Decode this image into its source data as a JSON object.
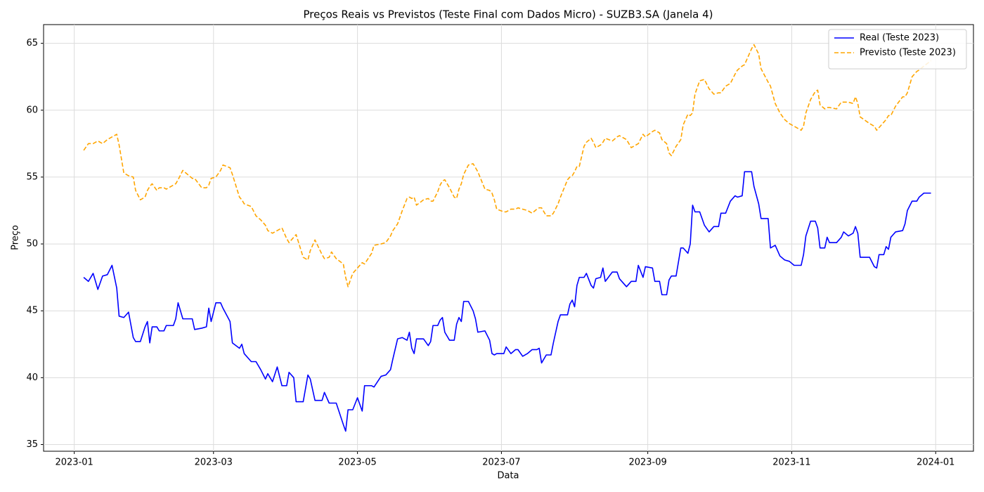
{
  "chart_data": {
    "type": "line",
    "title": "Preços Reais vs Previstos (Teste Final com Dados Micro) - SUZB3.SA (Janela 4)",
    "x_label": "Data",
    "y_label": "Preço",
    "x": [
      "2023-01-05",
      "2023-01-07",
      "2023-01-09",
      "2023-01-11",
      "2023-01-13",
      "2023-01-15",
      "2023-01-17",
      "2023-01-19",
      "2023-01-20",
      "2023-01-22",
      "2023-01-24",
      "2023-01-26",
      "2023-01-27",
      "2023-01-29",
      "2023-01-31",
      "2023-02-01",
      "2023-02-02",
      "2023-02-03",
      "2023-02-05",
      "2023-02-06",
      "2023-02-08",
      "2023-02-09",
      "2023-02-12",
      "2023-02-13",
      "2023-02-14",
      "2023-02-16",
      "2023-02-18",
      "2023-02-20",
      "2023-02-21",
      "2023-02-24",
      "2023-02-26",
      "2023-02-27",
      "2023-02-28",
      "2023-03-02",
      "2023-03-04",
      "2023-03-05",
      "2023-03-08",
      "2023-03-09",
      "2023-03-12",
      "2023-03-13",
      "2023-03-14",
      "2023-03-17",
      "2023-03-19",
      "2023-03-21",
      "2023-03-23",
      "2023-03-24",
      "2023-03-26",
      "2023-03-28",
      "2023-03-30",
      "2023-04-01",
      "2023-04-02",
      "2023-04-04",
      "2023-04-05",
      "2023-04-08",
      "2023-04-10",
      "2023-04-11",
      "2023-04-13",
      "2023-04-16",
      "2023-04-17",
      "2023-04-19",
      "2023-04-20",
      "2023-04-22",
      "2023-04-25",
      "2023-04-26",
      "2023-04-27",
      "2023-04-29",
      "2023-05-01",
      "2023-05-03",
      "2023-05-04",
      "2023-05-07",
      "2023-05-08",
      "2023-05-11",
      "2023-05-13",
      "2023-05-15",
      "2023-05-16",
      "2023-05-18",
      "2023-05-20",
      "2023-05-22",
      "2023-05-23",
      "2023-05-24",
      "2023-05-25",
      "2023-05-26",
      "2023-05-29",
      "2023-05-31",
      "2023-06-01",
      "2023-06-02",
      "2023-06-04",
      "2023-06-05",
      "2023-06-06",
      "2023-06-07",
      "2023-06-09",
      "2023-06-11",
      "2023-06-12",
      "2023-06-13",
      "2023-06-14",
      "2023-06-15",
      "2023-06-17",
      "2023-06-19",
      "2023-06-20",
      "2023-06-21",
      "2023-06-24",
      "2023-06-26",
      "2023-06-27",
      "2023-06-28",
      "2023-06-29",
      "2023-07-02",
      "2023-07-03",
      "2023-07-05",
      "2023-07-07",
      "2023-07-08",
      "2023-07-10",
      "2023-07-12",
      "2023-07-14",
      "2023-07-16",
      "2023-07-17",
      "2023-07-18",
      "2023-07-20",
      "2023-07-22",
      "2023-07-23",
      "2023-07-25",
      "2023-07-26",
      "2023-07-29",
      "2023-07-30",
      "2023-07-31",
      "2023-08-01",
      "2023-08-02",
      "2023-08-03",
      "2023-08-05",
      "2023-08-06",
      "2023-08-08",
      "2023-08-09",
      "2023-08-10",
      "2023-08-12",
      "2023-08-13",
      "2023-08-14",
      "2023-08-17",
      "2023-08-19",
      "2023-08-20",
      "2023-08-23",
      "2023-08-25",
      "2023-08-27",
      "2023-08-28",
      "2023-08-30",
      "2023-08-31",
      "2023-09-03",
      "2023-09-04",
      "2023-09-06",
      "2023-09-07",
      "2023-09-09",
      "2023-09-10",
      "2023-09-11",
      "2023-09-13",
      "2023-09-15",
      "2023-09-16",
      "2023-09-18",
      "2023-09-19",
      "2023-09-20",
      "2023-09-21",
      "2023-09-23",
      "2023-09-25",
      "2023-09-27",
      "2023-09-29",
      "2023-10-01",
      "2023-10-02",
      "2023-10-04",
      "2023-10-06",
      "2023-10-08",
      "2023-10-09",
      "2023-10-11",
      "2023-10-12",
      "2023-10-15",
      "2023-10-16",
      "2023-10-18",
      "2023-10-19",
      "2023-10-22",
      "2023-10-23",
      "2023-10-25",
      "2023-10-27",
      "2023-10-29",
      "2023-10-31",
      "2023-11-02",
      "2023-11-05",
      "2023-11-06",
      "2023-11-07",
      "2023-11-09",
      "2023-11-11",
      "2023-11-12",
      "2023-11-13",
      "2023-11-15",
      "2023-11-16",
      "2023-11-17",
      "2023-11-20",
      "2023-11-22",
      "2023-11-23",
      "2023-11-25",
      "2023-11-27",
      "2023-11-28",
      "2023-11-29",
      "2023-11-30",
      "2023-12-04",
      "2023-12-06",
      "2023-12-07",
      "2023-12-08",
      "2023-12-10",
      "2023-12-11",
      "2023-12-12",
      "2023-12-13",
      "2023-12-15",
      "2023-12-18",
      "2023-12-19",
      "2023-12-20",
      "2023-12-22",
      "2023-12-24",
      "2023-12-25",
      "2023-12-27",
      "2023-12-30"
    ],
    "series": [
      {
        "name": "Real (Teste 2023)",
        "color": "#0000ff",
        "linestyle": "solid",
        "values": [
          47.5,
          47.2,
          47.8,
          46.6,
          47.6,
          47.7,
          48.4,
          46.7,
          44.6,
          44.5,
          44.9,
          43.0,
          42.7,
          42.7,
          43.8,
          44.2,
          42.6,
          43.8,
          43.8,
          43.5,
          43.5,
          43.9,
          43.9,
          44.4,
          45.6,
          44.4,
          44.4,
          44.4,
          43.6,
          43.7,
          43.8,
          45.2,
          44.2,
          45.6,
          45.6,
          45.2,
          44.2,
          42.6,
          42.2,
          42.5,
          41.8,
          41.2,
          41.2,
          40.6,
          39.9,
          40.3,
          39.7,
          40.8,
          39.4,
          39.4,
          40.4,
          40.0,
          38.2,
          38.2,
          40.2,
          39.9,
          38.3,
          38.3,
          38.9,
          38.1,
          38.1,
          38.1,
          36.5,
          36.0,
          37.6,
          37.6,
          38.5,
          37.5,
          39.4,
          39.4,
          39.3,
          40.1,
          40.2,
          40.6,
          41.4,
          42.9,
          43.0,
          42.8,
          43.4,
          42.2,
          41.8,
          42.9,
          42.9,
          42.4,
          42.7,
          43.9,
          43.9,
          44.3,
          44.5,
          43.4,
          42.8,
          42.8,
          44.0,
          44.5,
          44.2,
          45.7,
          45.7,
          45.0,
          44.4,
          43.4,
          43.5,
          42.8,
          41.8,
          41.7,
          41.8,
          41.8,
          42.3,
          41.8,
          42.1,
          42.1,
          41.6,
          41.8,
          42.1,
          42.1,
          42.2,
          41.1,
          41.7,
          41.7,
          42.6,
          44.2,
          44.7,
          44.7,
          45.5,
          45.8,
          45.3,
          46.9,
          47.5,
          47.5,
          47.8,
          46.9,
          46.7,
          47.4,
          47.5,
          48.2,
          47.2,
          47.9,
          47.9,
          47.4,
          46.8,
          47.2,
          47.2,
          48.4,
          47.5,
          48.3,
          48.2,
          47.2,
          47.2,
          46.2,
          46.2,
          47.3,
          47.6,
          47.6,
          49.7,
          49.7,
          49.3,
          50.0,
          52.9,
          52.4,
          52.4,
          51.4,
          50.9,
          51.3,
          51.3,
          52.3,
          52.3,
          53.2,
          53.6,
          53.5,
          53.6,
          55.4,
          55.4,
          54.3,
          53.0,
          51.9,
          51.9,
          49.7,
          49.9,
          49.1,
          48.8,
          48.7,
          48.4,
          48.4,
          49.2,
          50.6,
          51.7,
          51.7,
          51.2,
          49.7,
          49.7,
          50.5,
          50.1,
          50.1,
          50.5,
          50.9,
          50.6,
          50.8,
          51.3,
          50.8,
          49.0,
          49.0,
          48.3,
          48.2,
          49.2,
          49.2,
          49.8,
          49.6,
          50.5,
          50.9,
          51.0,
          51.5,
          52.5,
          53.2,
          53.2,
          53.5,
          53.8,
          53.8
        ]
      },
      {
        "name": "Previsto (Teste 2023)",
        "color": "#ffa500",
        "linestyle": "dashed",
        "values": [
          57.0,
          57.5,
          57.5,
          57.7,
          57.5,
          57.8,
          58.0,
          58.2,
          57.4,
          55.3,
          55.1,
          55.0,
          54.0,
          53.3,
          53.5,
          54.0,
          54.3,
          54.5,
          54.0,
          54.2,
          54.2,
          54.1,
          54.4,
          54.5,
          54.8,
          55.5,
          55.2,
          54.9,
          54.9,
          54.2,
          54.2,
          54.4,
          54.9,
          55.0,
          55.5,
          55.9,
          55.7,
          55.2,
          53.5,
          53.3,
          53.0,
          52.8,
          52.1,
          51.8,
          51.4,
          51.0,
          50.8,
          51.0,
          51.2,
          50.4,
          50.1,
          50.5,
          50.7,
          49.0,
          48.8,
          49.5,
          50.3,
          49.2,
          48.9,
          49.0,
          49.4,
          48.9,
          48.5,
          47.5,
          46.8,
          47.8,
          48.2,
          48.6,
          48.5,
          49.3,
          49.9,
          50.0,
          50.1,
          50.6,
          51.0,
          51.5,
          52.5,
          53.4,
          53.5,
          53.4,
          53.5,
          52.9,
          53.3,
          53.4,
          53.2,
          53.2,
          53.9,
          54.4,
          54.7,
          54.8,
          54.2,
          53.5,
          53.4,
          54.1,
          54.5,
          55.2,
          55.9,
          56.0,
          55.7,
          55.4,
          54.1,
          54.0,
          53.8,
          53.3,
          52.6,
          52.4,
          52.4,
          52.6,
          52.6,
          52.7,
          52.6,
          52.5,
          52.3,
          52.6,
          52.7,
          52.7,
          52.1,
          52.1,
          52.3,
          53.0,
          53.5,
          54.8,
          55.0,
          55.1,
          55.4,
          55.8,
          55.8,
          57.3,
          57.6,
          57.9,
          57.6,
          57.2,
          57.4,
          57.6,
          57.9,
          57.7,
          58.0,
          58.1,
          57.8,
          57.2,
          57.4,
          57.5,
          58.2,
          58.0,
          58.4,
          58.5,
          58.3,
          57.8,
          57.5,
          56.8,
          56.6,
          57.3,
          57.8,
          58.9,
          59.7,
          59.6,
          59.8,
          61.2,
          62.2,
          62.3,
          61.6,
          61.2,
          61.3,
          61.3,
          61.8,
          62.0,
          62.7,
          63.0,
          63.3,
          63.4,
          64.6,
          64.9,
          64.2,
          63.1,
          62.1,
          61.8,
          60.5,
          59.8,
          59.3,
          59.0,
          58.8,
          58.5,
          58.8,
          59.8,
          60.8,
          61.4,
          61.5,
          60.4,
          60.1,
          60.2,
          60.2,
          60.1,
          60.6,
          60.6,
          60.6,
          60.5,
          61.0,
          60.5,
          59.5,
          59.0,
          58.8,
          58.5,
          58.7,
          59.1,
          59.3,
          59.6,
          59.6,
          60.3,
          61.0,
          61.0,
          61.3,
          62.5,
          62.9,
          63.0,
          63.3,
          63.7
        ]
      }
    ],
    "xlim": [
      "2022-12-19",
      "2024-01-17"
    ],
    "xticks": [
      {
        "value": "2023-01-01",
        "label": "2023-01"
      },
      {
        "value": "2023-03-01",
        "label": "2023-03"
      },
      {
        "value": "2023-05-01",
        "label": "2023-05"
      },
      {
        "value": "2023-07-01",
        "label": "2023-07"
      },
      {
        "value": "2023-09-01",
        "label": "2023-09"
      },
      {
        "value": "2023-11-01",
        "label": "2023-11"
      },
      {
        "value": "2024-01-01",
        "label": "2024-01"
      }
    ],
    "ylim": [
      34.5,
      66.4
    ],
    "yticks": [
      35,
      40,
      45,
      50,
      55,
      60,
      65
    ],
    "grid": true,
    "legend": "upper right"
  }
}
